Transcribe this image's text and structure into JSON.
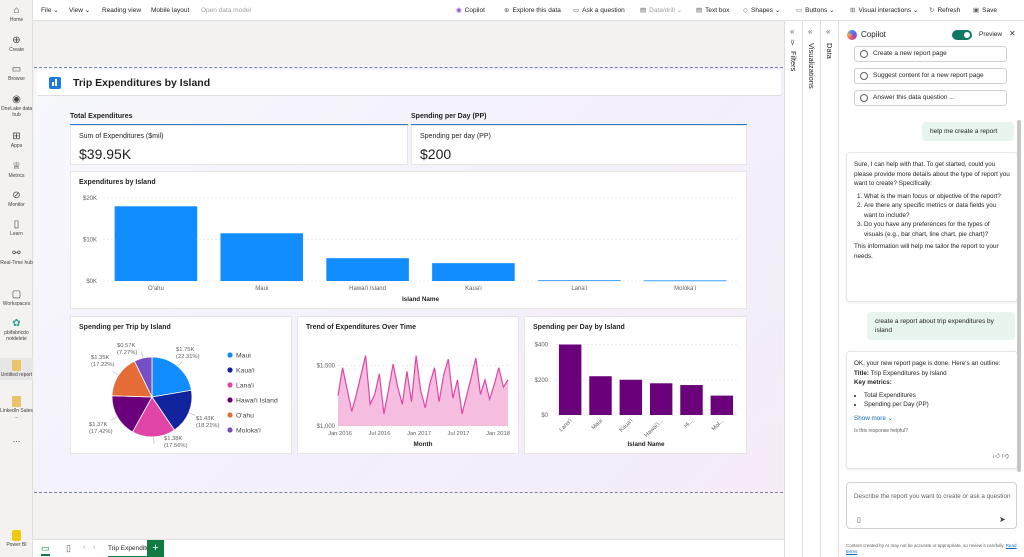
{
  "rail": {
    "items": [
      {
        "label": "Home",
        "icon": "home-icon"
      },
      {
        "label": "Create",
        "icon": "plus-circle-icon"
      },
      {
        "label": "Browse",
        "icon": "folder-icon"
      },
      {
        "label": "OneLake data hub",
        "icon": "onelake-icon"
      },
      {
        "label": "Apps",
        "icon": "apps-icon"
      },
      {
        "label": "Metrics",
        "icon": "trophy-icon"
      },
      {
        "label": "Monitor",
        "icon": "monitor-icon"
      },
      {
        "label": "Learn",
        "icon": "book-icon"
      },
      {
        "label": "Real-Time hub",
        "icon": "realtime-icon"
      },
      {
        "label": "Workspaces",
        "icon": "workspaces-icon"
      },
      {
        "label": "pbifabricdo notdelete",
        "icon": "workspace-icon"
      },
      {
        "label": "Untitled report",
        "icon": "report-icon"
      },
      {
        "label": "LinkedIn Sales ...",
        "icon": "report-icon"
      },
      {
        "label": "...",
        "icon": "more-icon"
      },
      {
        "label": "Power BI",
        "icon": "powerbi-icon"
      }
    ]
  },
  "toolbar": {
    "file": "File",
    "view": "View",
    "reading_view": "Reading view",
    "mobile_layout": "Mobile layout",
    "open_data_model": "Open data model",
    "copilot": "Copilot",
    "explore": "Explore this data",
    "ask": "Ask a question",
    "data_drill": "Data/drill",
    "text_box": "Text box",
    "shapes": "Shapes",
    "buttons": "Buttons",
    "visual_interactions": "Visual interactions",
    "refresh": "Refresh",
    "save": "Save"
  },
  "report": {
    "title": "Trip Expenditures by Island",
    "section1": "Total Expenditures",
    "section2": "Spending per Day (PP)",
    "card1": {
      "label": "Sum of Expenditures ($mil)",
      "value": "$39.95K"
    },
    "card2": {
      "label": "Spending per day (PP)",
      "value": "$200"
    }
  },
  "chart_data": [
    {
      "type": "bar",
      "title": "Expenditures by Island",
      "xlabel": "Island Name",
      "ylabel": "",
      "categories": [
        "O'ahu",
        "Maui",
        "Hawai'i Island",
        "Kaua'i",
        "Lana'i",
        "Moloka'i"
      ],
      "values": [
        18000,
        11500,
        5500,
        4300,
        180,
        150
      ],
      "yticks": [
        "$0K",
        "$10K",
        "$20K"
      ],
      "ylim": [
        0,
        20000
      ],
      "color": "#118dff"
    },
    {
      "type": "pie",
      "title": "Spending per Trip by Island",
      "slices": [
        {
          "name": "Maui",
          "value": 22.31,
          "label": "$1.75K (22.31%)",
          "color": "#118dff"
        },
        {
          "name": "Kaua'i",
          "value": 18.21,
          "label": "$1.43K (18.21%)",
          "color": "#12239e"
        },
        {
          "name": "Lana'i",
          "value": 17.56,
          "label": "$1.38K (17.56%)",
          "color": "#e044a7"
        },
        {
          "name": "Hawai'i Island",
          "value": 17.42,
          "label": "$1.37K (17.42%)",
          "color": "#6b007b"
        },
        {
          "name": "O'ahu",
          "value": 17.22,
          "label": "$1.35K (17.22%)",
          "color": "#e66c37"
        },
        {
          "name": "Moloka'i",
          "value": 7.27,
          "label": "$0.57K (7.27%)",
          "color": "#744ec2"
        }
      ]
    },
    {
      "type": "area",
      "title": "Trend of Expenditures Over Time",
      "xlabel": "Month",
      "ylabel": "",
      "xticks": [
        "Jan 2016",
        "Jul 2016",
        "Jan 2017",
        "Jul 2017",
        "Jan 2018"
      ],
      "yticks": [
        "$1,000",
        "$1,500"
      ],
      "ylim": [
        1000,
        1700
      ],
      "values": [
        1250,
        1480,
        1300,
        1120,
        1260,
        1420,
        1580,
        1180,
        1260,
        1430,
        1100,
        1300,
        1510,
        1320,
        1180,
        1450,
        1200,
        1580,
        1290,
        1150,
        1350,
        1480,
        1200,
        1420,
        1550,
        1230,
        1380,
        1100,
        1250,
        1400,
        1560,
        1260,
        1380,
        1220,
        1340,
        1480,
        1320,
        1380
      ],
      "color": "#e044a7"
    },
    {
      "type": "bar",
      "title": "Spending per Day by Island",
      "xlabel": "Island Name",
      "ylabel": "",
      "categories": [
        "Lana'i",
        "Maui",
        "Kaua'i",
        "Hawai'i...",
        "Hi...",
        "Mol..."
      ],
      "values": [
        400,
        220,
        200,
        180,
        170,
        110
      ],
      "yticks": [
        "$0",
        "$200",
        "$400"
      ],
      "ylim": [
        0,
        420
      ],
      "color": "#6b007b"
    }
  ],
  "panes": {
    "filters": "Filters",
    "visualizations": "Visualizations",
    "data": "Data"
  },
  "bottom": {
    "page_tab": "Trip Expenditures by Island"
  },
  "copilot": {
    "title": "Copilot",
    "preview": "Preview",
    "suggestions": [
      "Create a new report page",
      "Suggest content for a new report page",
      "Answer this data question ..."
    ],
    "user_msg1": "help me create a report",
    "assistant1": {
      "intro": "Sure, I can help with that. To get started, could you please provide more details about the type of report you want to create? Specifically:",
      "items": [
        "What is the main focus or objective of the report?",
        "Are there any specific metrics or data fields you want to include?",
        "Do you have any preferences for the types of visuals (e.g., bar chart, line chart, pie chart)?"
      ],
      "outro": "This information will help me tailor the report to your needs."
    },
    "user_msg2": "create a report about trip expenditures by island",
    "assistant2": {
      "intro": "OK, your new report page is done. Here's an outline:",
      "title_label": "Title:",
      "title_value": "Trip Expenditures by Island",
      "metrics_label": "Key metrics:",
      "metrics": [
        "Total Expenditures",
        "Spending per Day (PP)"
      ],
      "show_more": "Show more",
      "helpful": "Is this response helpful?"
    },
    "input_placeholder": "Describe the report you want to create or ask a question",
    "disclaimer": "Content created by AI may not be accurate or appropriate, so review it carefully.",
    "read_terms": "Read terms"
  }
}
